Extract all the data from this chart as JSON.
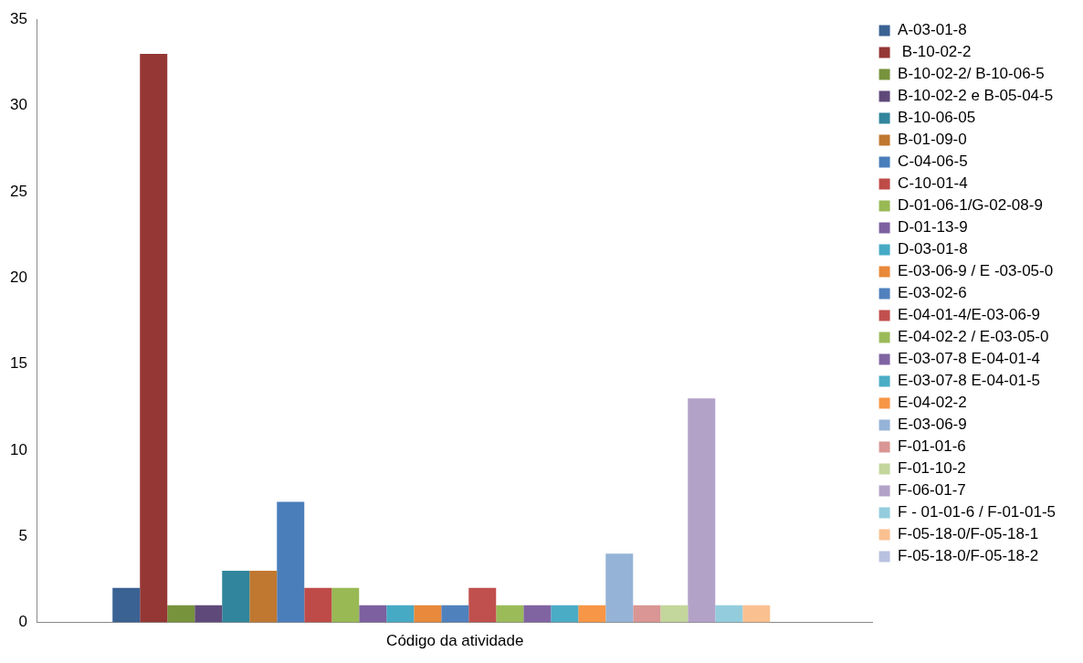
{
  "chart_data": {
    "type": "bar",
    "categories": [
      "Código da atividade"
    ],
    "ylim": [
      0,
      35
    ],
    "yticks": [
      0,
      5,
      10,
      15,
      20,
      25,
      30,
      35
    ],
    "grid": false,
    "legend": "right",
    "series": [
      {
        "name": "A-03-01-8",
        "color": "#3a6293",
        "values": [
          2
        ]
      },
      {
        "name": " B-10-02-2",
        "color": "#953735",
        "values": [
          33
        ]
      },
      {
        "name": "B-10-02-2/ B-10-06-5",
        "color": "#77933c",
        "values": [
          1
        ]
      },
      {
        "name": "B-10-02-2 e B-05-04-5",
        "color": "#5f497a",
        "values": [
          1
        ]
      },
      {
        "name": "B-10-06-05",
        "color": "#31859c",
        "values": [
          3
        ]
      },
      {
        "name": "B-01-09-0",
        "color": "#c0772f",
        "values": [
          3
        ]
      },
      {
        "name": "C-04-06-5",
        "color": "#4a7ebb",
        "values": [
          7
        ]
      },
      {
        "name": "C-10-01-4",
        "color": "#be4b48",
        "values": [
          2
        ]
      },
      {
        "name": "D-01-06-1/G-02-08-9",
        "color": "#98b954",
        "values": [
          2
        ]
      },
      {
        "name": "D-01-13-9",
        "color": "#7d60a0",
        "values": [
          1
        ]
      },
      {
        "name": "D-03-01-8",
        "color": "#46aac5",
        "values": [
          1
        ]
      },
      {
        "name": "E-03-06-9 / E -03-05-0",
        "color": "#e8893b",
        "values": [
          1
        ]
      },
      {
        "name": "E-03-02-6",
        "color": "#4f81bd",
        "values": [
          1
        ]
      },
      {
        "name": "E-04-01-4/E-03-06-9",
        "color": "#c0504d",
        "values": [
          2
        ]
      },
      {
        "name": "E-04-02-2 / E-03-05-0",
        "color": "#9bbb59",
        "values": [
          1
        ]
      },
      {
        "name": "E-03-07-8 E-04-01-4",
        "color": "#8064a2",
        "values": [
          1
        ]
      },
      {
        "name": "E-03-07-8 E-04-01-5",
        "color": "#4bacc6",
        "values": [
          1
        ]
      },
      {
        "name": "E-04-02-2",
        "color": "#f79646",
        "values": [
          1
        ]
      },
      {
        "name": "E-03-06-9",
        "color": "#95b3d7",
        "values": [
          4
        ]
      },
      {
        "name": "F-01-01-6",
        "color": "#d99694",
        "values": [
          1
        ]
      },
      {
        "name": "F-01-10-2",
        "color": "#c3d69b",
        "values": [
          1
        ]
      },
      {
        "name": "F-06-01-7",
        "color": "#b3a2c7",
        "values": [
          13
        ]
      },
      {
        "name": "F - 01-01-6 / F-01-01-5",
        "color": "#93cddd",
        "values": [
          1
        ]
      },
      {
        "name": "F-05-18-0/F-05-18-1",
        "color": "#fac090",
        "values": [
          1
        ]
      },
      {
        "name": "F-05-18-0/F-05-18-2",
        "color": "#b9c1e0",
        "values": [
          null
        ]
      }
    ]
  }
}
